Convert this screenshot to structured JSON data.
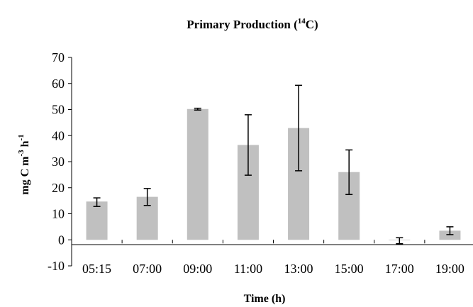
{
  "chart_data": {
    "type": "bar",
    "title": "Primary Production (",
    "title_sup": "14",
    "title_end": "C)",
    "xlabel": "Time (h)",
    "ylabel_parts": {
      "a": "mg C m",
      "sup1": "-3",
      "b": " h",
      "sup2": "-1"
    },
    "categories": [
      "05:15",
      "07:00",
      "09:00",
      "11:00",
      "13:00",
      "15:00",
      "17:00",
      "19:00"
    ],
    "values": [
      14.7,
      16.5,
      50.2,
      36.4,
      42.9,
      26.0,
      -0.2,
      3.5
    ],
    "error_low": [
      12.8,
      13.2,
      49.8,
      24.8,
      26.5,
      17.4,
      -1.5,
      2.0
    ],
    "error_high": [
      16.1,
      19.7,
      50.5,
      48.0,
      59.3,
      34.5,
      0.8,
      5.0
    ],
    "ylim": [
      -10,
      70
    ],
    "yticks": [
      -10,
      0,
      10,
      20,
      30,
      40,
      50,
      60,
      70
    ],
    "grid": false,
    "bar_color": "#c0c0c0"
  }
}
